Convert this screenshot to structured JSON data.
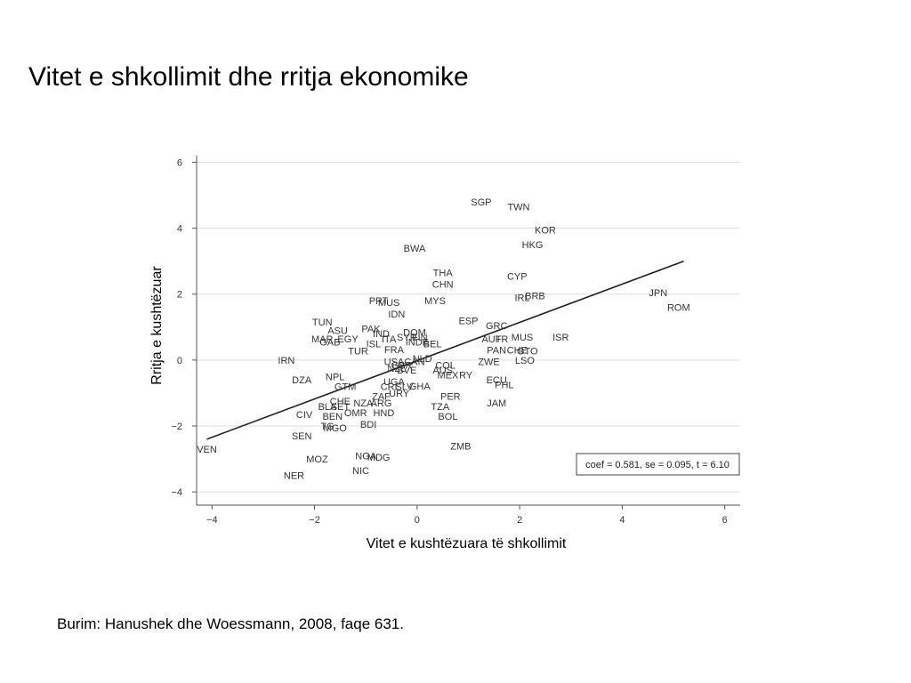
{
  "slide": {
    "title": "Vitet e shkollimit dhe rritja ekonomike",
    "source": "Burim: Hanushek dhe Woessmann, 2008, faqe 631."
  },
  "chart_data": {
    "type": "scatter",
    "xlabel": "Vitet e kushtëzuara të shkollimit",
    "ylabel": "Rritja e kushtëzuar",
    "xlim": [
      -4.3,
      6.3
    ],
    "ylim": [
      -4.4,
      6.2
    ],
    "x_ticks": [
      -4,
      -2,
      0,
      2,
      4,
      6
    ],
    "y_ticks": [
      -4,
      -2,
      0,
      2,
      4,
      6
    ],
    "x_tick_labels": [
      "−4",
      "−2",
      "0",
      "2",
      "4",
      "6"
    ],
    "y_tick_labels": [
      "−4",
      "−2",
      "0",
      "2",
      "4",
      "6"
    ],
    "grid": "horizontal",
    "colors": {
      "text": "#333333",
      "line": "#222222",
      "grid": "#dddddd"
    },
    "stats_box": "coef = 0.581, se = 0.095, t = 6.10",
    "fit_line": {
      "x": [
        -4.1,
        5.2
      ],
      "y": [
        -2.4,
        3.0
      ]
    },
    "points": [
      {
        "label": "SGP",
        "x": 1.25,
        "y": 4.8
      },
      {
        "label": "TWN",
        "x": 1.98,
        "y": 4.65
      },
      {
        "label": "KOR",
        "x": 2.5,
        "y": 3.95
      },
      {
        "label": "HKG",
        "x": 2.25,
        "y": 3.5
      },
      {
        "label": "BWA",
        "x": -0.05,
        "y": 3.4
      },
      {
        "label": "THA",
        "x": 0.5,
        "y": 2.65
      },
      {
        "label": "CYP",
        "x": 1.95,
        "y": 2.55
      },
      {
        "label": "CHN",
        "x": 0.5,
        "y": 2.3
      },
      {
        "label": "JPN",
        "x": 4.7,
        "y": 2.05
      },
      {
        "label": "BRB",
        "x": 2.3,
        "y": 1.95
      },
      {
        "label": "IRL",
        "x": 2.05,
        "y": 1.9
      },
      {
        "label": "PRT",
        "x": -0.75,
        "y": 1.8
      },
      {
        "label": "MUS",
        "x": -0.55,
        "y": 1.75
      },
      {
        "label": "MYS",
        "x": 0.35,
        "y": 1.8
      },
      {
        "label": "ROM",
        "x": 5.1,
        "y": 1.6
      },
      {
        "label": "IDN",
        "x": -0.4,
        "y": 1.4
      },
      {
        "label": "ESP",
        "x": 1.0,
        "y": 1.2
      },
      {
        "label": "TUN",
        "x": -1.85,
        "y": 1.15
      },
      {
        "label": "GRC",
        "x": 1.55,
        "y": 1.05
      },
      {
        "label": "ASU",
        "x": -1.55,
        "y": 0.9
      },
      {
        "label": "PAK",
        "x": -0.9,
        "y": 0.95
      },
      {
        "label": "IND",
        "x": -0.7,
        "y": 0.8
      },
      {
        "label": "DOM",
        "x": -0.05,
        "y": 0.85
      },
      {
        "label": "MAR",
        "x": -1.85,
        "y": 0.65
      },
      {
        "label": "EGY",
        "x": -1.35,
        "y": 0.65
      },
      {
        "label": "ITA",
        "x": -0.55,
        "y": 0.65
      },
      {
        "label": "SYR",
        "x": -0.2,
        "y": 0.7
      },
      {
        "label": "FIN",
        "x": 0.05,
        "y": 0.7
      },
      {
        "label": "AUT",
        "x": 1.45,
        "y": 0.65
      },
      {
        "label": "FR",
        "x": 1.65,
        "y": 0.65
      },
      {
        "label": "MUS",
        "x": 2.05,
        "y": 0.7
      },
      {
        "label": "ISR",
        "x": 2.8,
        "y": 0.7
      },
      {
        "label": "GAB",
        "x": -1.7,
        "y": 0.55
      },
      {
        "label": "ISL",
        "x": -0.85,
        "y": 0.5
      },
      {
        "label": "INDE",
        "x": 0.0,
        "y": 0.55
      },
      {
        "label": "BEL",
        "x": 0.3,
        "y": 0.5
      },
      {
        "label": "TUR",
        "x": -1.15,
        "y": 0.28
      },
      {
        "label": "FRA",
        "x": -0.45,
        "y": 0.32
      },
      {
        "label": "PAN",
        "x": 1.55,
        "y": 0.3
      },
      {
        "label": "CHE",
        "x": 1.95,
        "y": 0.3
      },
      {
        "label": "GTO",
        "x": 2.15,
        "y": 0.28
      },
      {
        "label": "NLD",
        "x": 0.1,
        "y": 0.05
      },
      {
        "label": "LSO",
        "x": 2.1,
        "y": 0.0
      },
      {
        "label": "IRN",
        "x": -2.55,
        "y": 0.0
      },
      {
        "label": "USA",
        "x": -0.45,
        "y": -0.05
      },
      {
        "label": "CAN",
        "x": -0.05,
        "y": -0.05
      },
      {
        "label": "ZWE",
        "x": 1.4,
        "y": -0.05
      },
      {
        "label": "GBR",
        "x": -0.3,
        "y": -0.15
      },
      {
        "label": "COL",
        "x": 0.55,
        "y": -0.15
      },
      {
        "label": "NZL",
        "x": -0.4,
        "y": -0.25
      },
      {
        "label": "BVE",
        "x": -0.2,
        "y": -0.3
      },
      {
        "label": "AUS",
        "x": 0.5,
        "y": -0.3
      },
      {
        "label": "MEX",
        "x": 0.6,
        "y": -0.45
      },
      {
        "label": "RY",
        "x": 0.95,
        "y": -0.45
      },
      {
        "label": "DZA",
        "x": -2.25,
        "y": -0.6
      },
      {
        "label": "NPL",
        "x": -1.6,
        "y": -0.5
      },
      {
        "label": "UGA",
        "x": -0.45,
        "y": -0.65
      },
      {
        "label": "ECU",
        "x": 1.55,
        "y": -0.6
      },
      {
        "label": "GTM",
        "x": -1.4,
        "y": -0.8
      },
      {
        "label": "CRI",
        "x": -0.55,
        "y": -0.8
      },
      {
        "label": "SLV",
        "x": -0.25,
        "y": -0.8
      },
      {
        "label": "GHA",
        "x": 0.05,
        "y": -0.78
      },
      {
        "label": "PHL",
        "x": 1.7,
        "y": -0.75
      },
      {
        "label": "ZAF",
        "x": -0.7,
        "y": -1.1
      },
      {
        "label": "URY",
        "x": -0.35,
        "y": -1.0
      },
      {
        "label": "PER",
        "x": 0.65,
        "y": -1.1
      },
      {
        "label": "CHE",
        "x": -1.5,
        "y": -1.25
      },
      {
        "label": "NZA",
        "x": -1.05,
        "y": -1.3
      },
      {
        "label": "ARG",
        "x": -0.7,
        "y": -1.3
      },
      {
        "label": "JAM",
        "x": 1.55,
        "y": -1.3
      },
      {
        "label": "BLA",
        "x": -1.75,
        "y": -1.4
      },
      {
        "label": "SET",
        "x": -1.5,
        "y": -1.4
      },
      {
        "label": "TZA",
        "x": 0.45,
        "y": -1.4
      },
      {
        "label": "CIV",
        "x": -2.2,
        "y": -1.65
      },
      {
        "label": "OMR",
        "x": -1.2,
        "y": -1.6
      },
      {
        "label": "HND",
        "x": -0.65,
        "y": -1.6
      },
      {
        "label": "BOL",
        "x": 0.6,
        "y": -1.7
      },
      {
        "label": "BEN",
        "x": -1.65,
        "y": -1.7
      },
      {
        "label": "BDI",
        "x": -0.95,
        "y": -1.95
      },
      {
        "label": "TG",
        "x": -1.75,
        "y": -2.0
      },
      {
        "label": "MGO",
        "x": -1.6,
        "y": -2.05
      },
      {
        "label": "SEN",
        "x": -2.25,
        "y": -2.3
      },
      {
        "label": "ZMB",
        "x": 0.85,
        "y": -2.6
      },
      {
        "label": "VEN",
        "x": -4.1,
        "y": -2.7
      },
      {
        "label": "NGA",
        "x": -1.0,
        "y": -2.9
      },
      {
        "label": "MDG",
        "x": -0.75,
        "y": -2.95
      },
      {
        "label": "MOZ",
        "x": -1.95,
        "y": -3.0
      },
      {
        "label": "NIC",
        "x": -1.1,
        "y": -3.35
      },
      {
        "label": "NER",
        "x": -2.4,
        "y": -3.5
      }
    ]
  }
}
